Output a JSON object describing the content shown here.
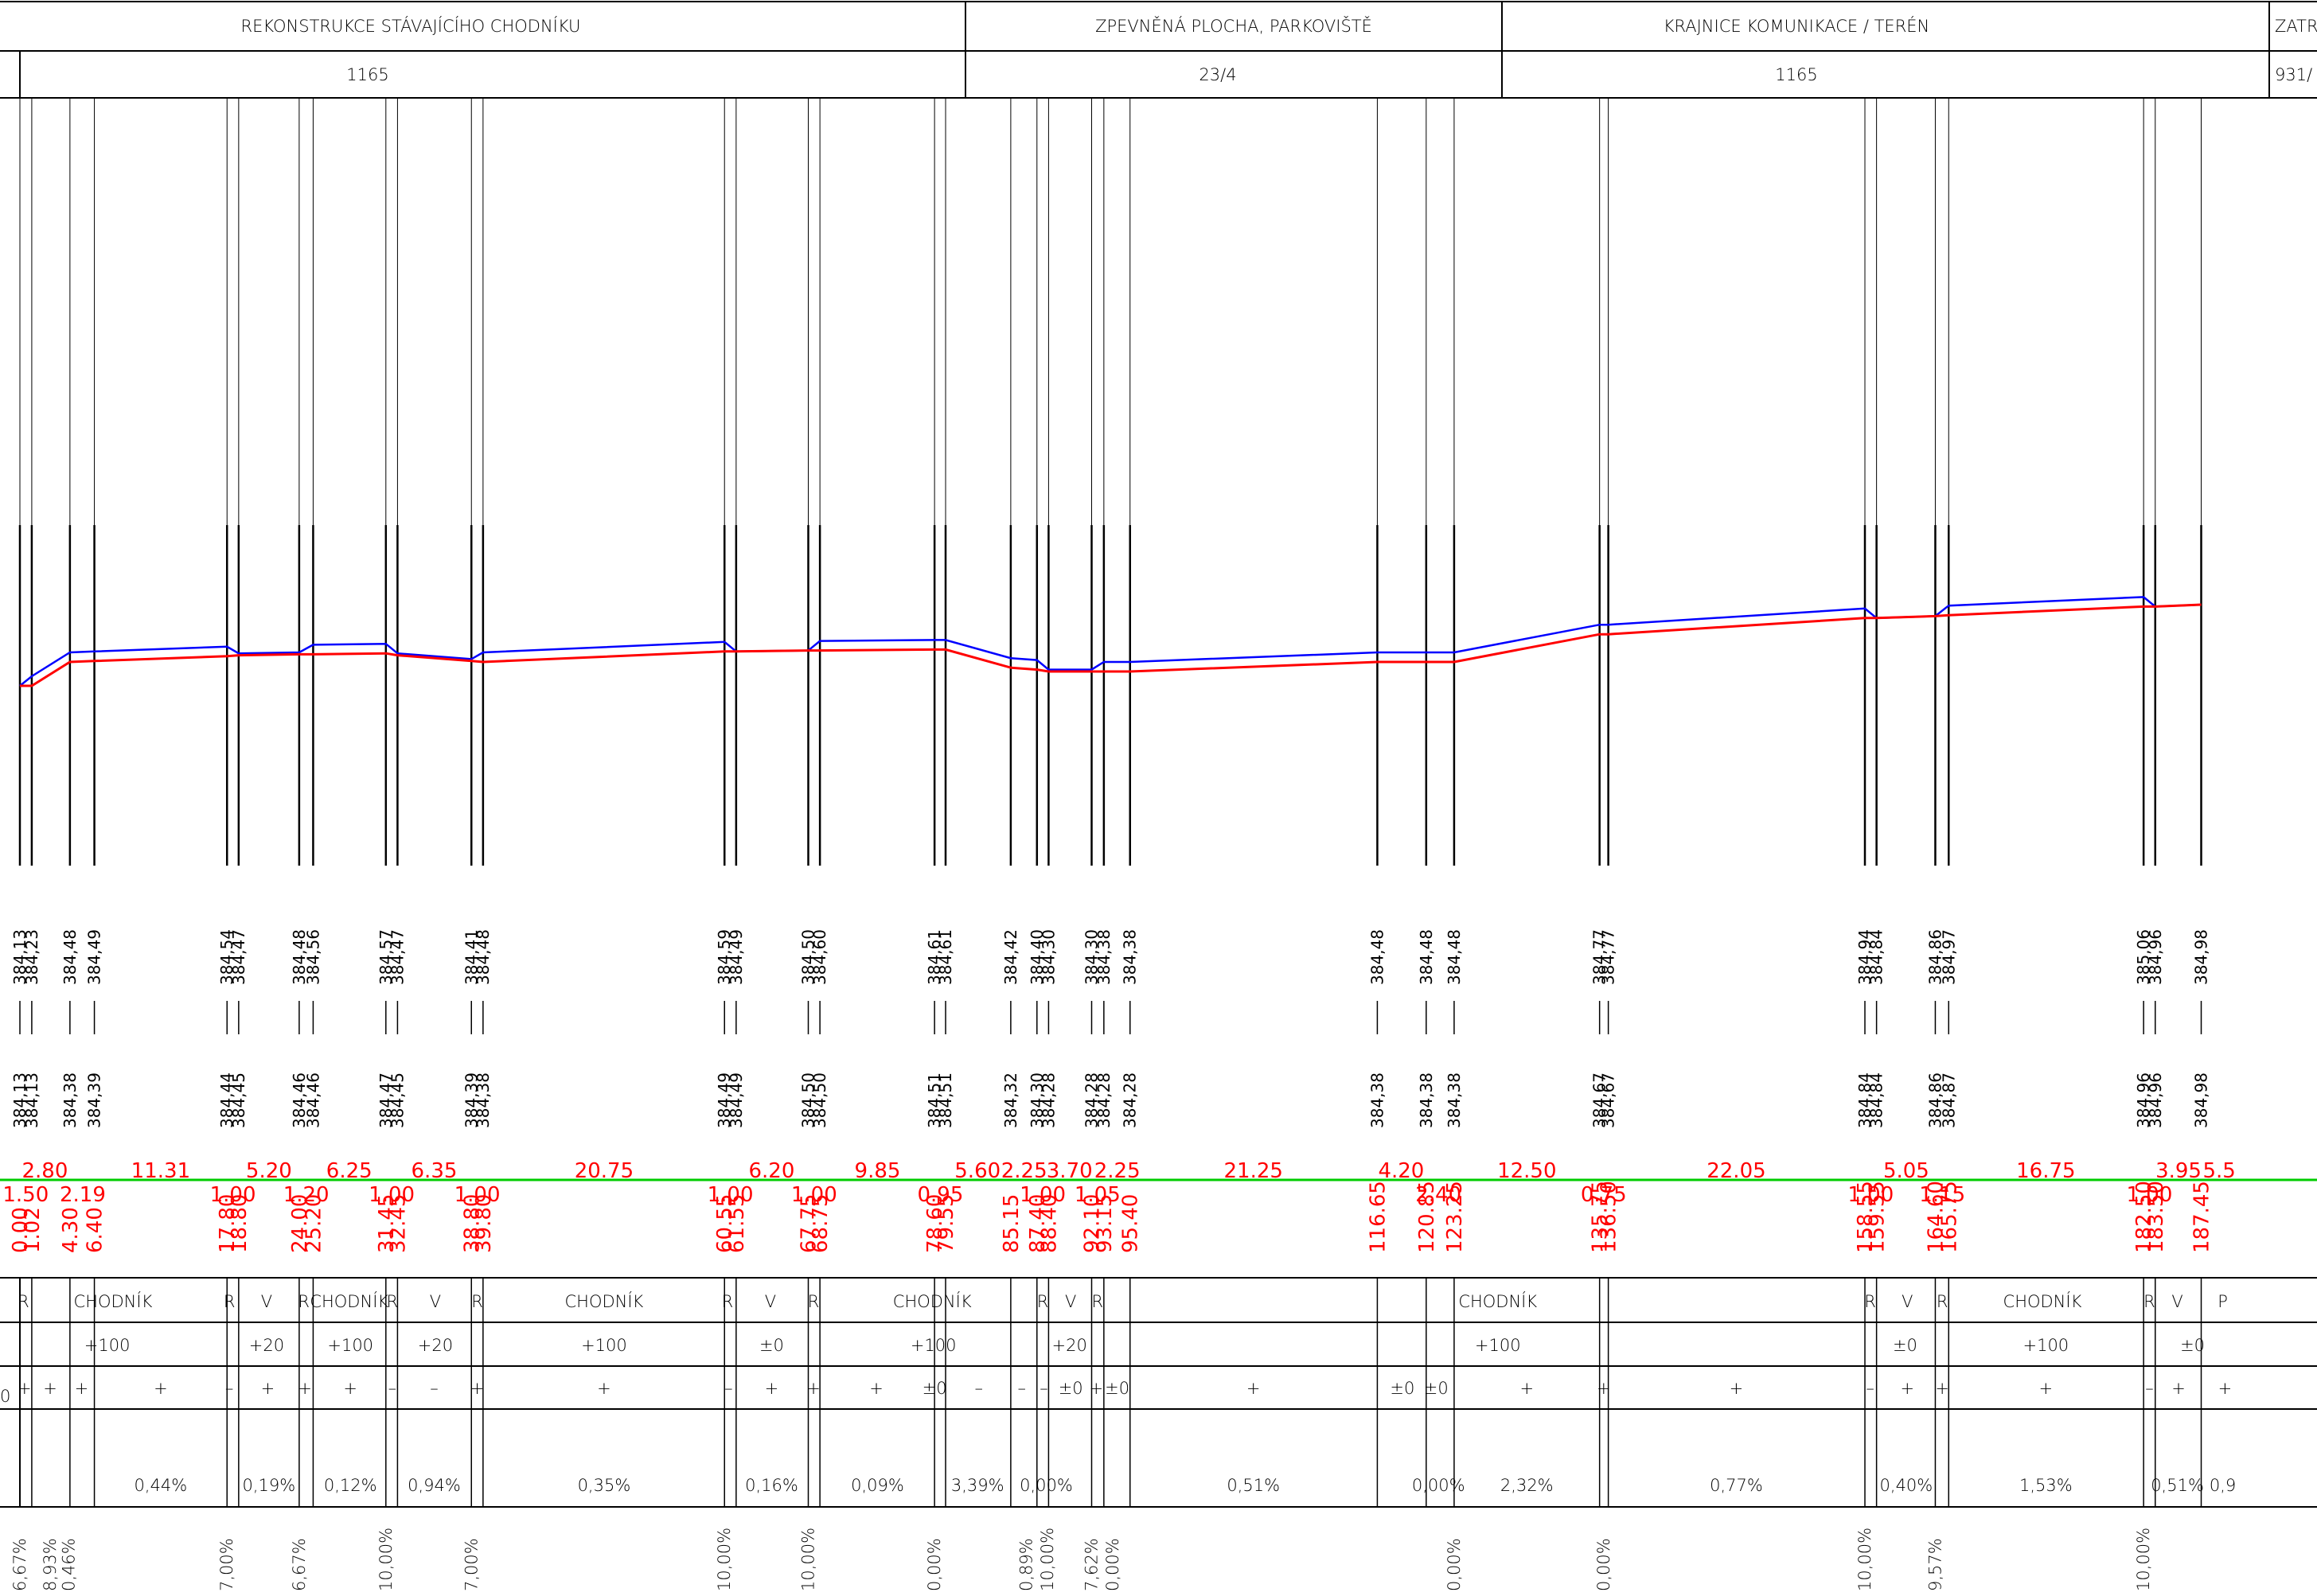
{
  "header": {
    "sections": [
      {
        "title": "REKONSTRUKCE STÁVAJÍCÍHO CHODNÍKU",
        "parcel": "1165"
      },
      {
        "title": "ZPEVNĚNÁ PLOCHA, PARKOVIŠTĚ",
        "parcel": "23/4"
      },
      {
        "title": "KRAJNICE KOMUNIKACE / TERÉN",
        "parcel": "1165"
      },
      {
        "title": "ZATR",
        "parcel": "931/"
      }
    ]
  },
  "colors": {
    "terrain": "#ff0000",
    "design": "#0000ff",
    "reference": "#00cc00",
    "lines": "#000000"
  },
  "stations": [
    {
      "x": 0.0,
      "existing": "384,13",
      "design": "384,13",
      "station": "0.00"
    },
    {
      "x": 1.02,
      "existing": "384,23",
      "design": "384,13",
      "station": "1.02"
    },
    {
      "x": 4.3,
      "existing": "384,48",
      "design": "384,38",
      "station": "4.30"
    },
    {
      "x": 6.4,
      "existing": "384,49",
      "design": "384,39",
      "station": "6.40"
    },
    {
      "x": 17.8,
      "existing": "384,54",
      "design": "384,44",
      "station": "17.80"
    },
    {
      "x": 18.8,
      "existing": "384,47",
      "design": "384,45",
      "station": "18.80"
    },
    {
      "x": 24.0,
      "existing": "384,48",
      "design": "384,46",
      "station": "24.00"
    },
    {
      "x": 25.2,
      "existing": "384,56",
      "design": "384,46",
      "station": "25.20"
    },
    {
      "x": 31.45,
      "existing": "384,57",
      "design": "384,47",
      "station": "31.45"
    },
    {
      "x": 32.45,
      "existing": "384,47",
      "design": "384,45",
      "station": "32.45"
    },
    {
      "x": 38.8,
      "existing": "384,41",
      "design": "384,39",
      "station": "38.80"
    },
    {
      "x": 39.8,
      "existing": "384,48",
      "design": "384,38",
      "station": "39.80"
    },
    {
      "x": 60.55,
      "existing": "384,59",
      "design": "384,49",
      "station": "60.55"
    },
    {
      "x": 61.55,
      "existing": "384,49",
      "design": "384,49",
      "station": "61.55"
    },
    {
      "x": 67.75,
      "existing": "384,50",
      "design": "384,50",
      "station": "67.75"
    },
    {
      "x": 68.75,
      "existing": "384,60",
      "design": "384,50",
      "station": "68.75"
    },
    {
      "x": 78.6,
      "existing": "384,61",
      "design": "384,51",
      "station": "78.60"
    },
    {
      "x": 79.55,
      "existing": "384,61",
      "design": "384,51",
      "station": "79.55"
    },
    {
      "x": 85.15,
      "existing": "384,42",
      "design": "384,32",
      "station": "85.15"
    },
    {
      "x": 87.4,
      "existing": "384,40",
      "design": "384,30",
      "station": "87.40"
    },
    {
      "x": 88.4,
      "existing": "384,30",
      "design": "384,28",
      "station": "88.40"
    },
    {
      "x": 92.1,
      "existing": "384,30",
      "design": "384,28",
      "station": "92.10"
    },
    {
      "x": 93.15,
      "existing": "384,38",
      "design": "384,28",
      "station": "93.15"
    },
    {
      "x": 95.4,
      "existing": "384,38",
      "design": "384,28",
      "station": "95.40"
    },
    {
      "x": 116.65,
      "existing": "384,48",
      "design": "384,38",
      "station": "116.65"
    },
    {
      "x": 120.85,
      "existing": "384,48",
      "design": "384,38",
      "station": "120.85"
    },
    {
      "x": 123.25,
      "existing": "384,48",
      "design": "384,38",
      "station": "123.25"
    },
    {
      "x": 135.75,
      "existing": "384,77",
      "design": "384,67",
      "station": "135.75"
    },
    {
      "x": 136.5,
      "existing": "384,77",
      "design": "384,67",
      "station": "136.50"
    },
    {
      "x": 158.55,
      "existing": "384,94",
      "design": "384,84",
      "station": "158.55"
    },
    {
      "x": 159.55,
      "existing": "384,84",
      "design": "384,84",
      "station": "159.55"
    },
    {
      "x": 164.6,
      "existing": "384,86",
      "design": "384,86",
      "station": "164.60"
    },
    {
      "x": 165.75,
      "existing": "384,97",
      "design": "384,87",
      "station": "165.75"
    },
    {
      "x": 182.5,
      "existing": "385,06",
      "design": "384,96",
      "station": "182.50"
    },
    {
      "x": 183.5,
      "existing": "384,96",
      "design": "384,96",
      "station": "183.50"
    },
    {
      "x": 187.45,
      "existing": "384,98",
      "design": "384,98",
      "station": "187.45"
    }
  ],
  "spacing_upper": [
    {
      "x": 2.15,
      "text": "2.80"
    },
    {
      "x": 12.1,
      "text": "11.31"
    },
    {
      "x": 21.4,
      "text": "5.20"
    },
    {
      "x": 28.3,
      "text": "6.25"
    },
    {
      "x": 35.6,
      "text": "6.35"
    },
    {
      "x": 50.2,
      "text": "20.75"
    },
    {
      "x": 64.6,
      "text": "6.20"
    },
    {
      "x": 73.7,
      "text": "9.85"
    },
    {
      "x": 82.3,
      "text": "5.60"
    },
    {
      "x": 86.3,
      "text": "2.25"
    },
    {
      "x": 90.2,
      "text": "3.70"
    },
    {
      "x": 94.3,
      "text": "2.25"
    },
    {
      "x": 106.0,
      "text": "21.25"
    },
    {
      "x": 118.7,
      "text": "4.20"
    },
    {
      "x": 129.5,
      "text": "12.50"
    },
    {
      "x": 147.5,
      "text": "22.05"
    },
    {
      "x": 162.1,
      "text": "5.05"
    },
    {
      "x": 174.1,
      "text": "16.75"
    },
    {
      "x": 185.5,
      "text": "3.95"
    },
    {
      "x": 189.0,
      "text": "5.5"
    }
  ],
  "spacing_lower": [
    {
      "x": 0.5,
      "text": "1.50"
    },
    {
      "x": 5.4,
      "text": "2.19"
    },
    {
      "x": 18.3,
      "text": "1.00"
    },
    {
      "x": 24.6,
      "text": "1.20"
    },
    {
      "x": 31.95,
      "text": "1.00"
    },
    {
      "x": 39.3,
      "text": "1.00"
    },
    {
      "x": 61.05,
      "text": "1.00"
    },
    {
      "x": 68.25,
      "text": "1.00"
    },
    {
      "x": 79.1,
      "text": "0.95"
    },
    {
      "x": 87.9,
      "text": "1.00"
    },
    {
      "x": 92.6,
      "text": "1.05"
    },
    {
      "x": 121.9,
      "text": "2.40"
    },
    {
      "x": 136.1,
      "text": "0.75"
    },
    {
      "x": 159.05,
      "text": "1.00"
    },
    {
      "x": 165.2,
      "text": "1.15"
    },
    {
      "x": 183.0,
      "text": "1.00"
    }
  ],
  "surface_rows": {
    "row1": [
      {
        "x": 0.3,
        "text": "R"
      },
      {
        "x": 8.0,
        "text": "CHODNÍK"
      },
      {
        "x": 18.0,
        "text": "R"
      },
      {
        "x": 21.2,
        "text": "V"
      },
      {
        "x": 24.4,
        "text": "R"
      },
      {
        "x": 28.3,
        "text": "CHODNÍK"
      },
      {
        "x": 32.0,
        "text": "R"
      },
      {
        "x": 35.7,
        "text": "V"
      },
      {
        "x": 39.3,
        "text": "R"
      },
      {
        "x": 50.2,
        "text": "CHODNÍK"
      },
      {
        "x": 60.8,
        "text": "R"
      },
      {
        "x": 64.5,
        "text": "V"
      },
      {
        "x": 68.2,
        "text": "R"
      },
      {
        "x": 78.4,
        "text": "CHODNÍK"
      },
      {
        "x": 87.9,
        "text": "R"
      },
      {
        "x": 90.3,
        "text": "V"
      },
      {
        "x": 92.6,
        "text": "R"
      },
      {
        "x": 127.0,
        "text": "CHODNÍK"
      },
      {
        "x": 159.0,
        "text": "R"
      },
      {
        "x": 162.2,
        "text": "V"
      },
      {
        "x": 165.2,
        "text": "R"
      },
      {
        "x": 173.8,
        "text": "CHODNÍK"
      },
      {
        "x": 183.0,
        "text": "R"
      },
      {
        "x": 185.4,
        "text": "V"
      },
      {
        "x": 189.3,
        "text": "P"
      }
    ],
    "row2": [
      {
        "x": 7.5,
        "text": "+100"
      },
      {
        "x": 21.2,
        "text": "+20"
      },
      {
        "x": 28.4,
        "text": "+100"
      },
      {
        "x": 35.7,
        "text": "+20"
      },
      {
        "x": 50.2,
        "text": "+100"
      },
      {
        "x": 64.6,
        "text": "±0"
      },
      {
        "x": 78.5,
        "text": "+100"
      },
      {
        "x": 90.2,
        "text": "+20"
      },
      {
        "x": 127.0,
        "text": "+100"
      },
      {
        "x": 162.0,
        "text": "±0"
      },
      {
        "x": 174.1,
        "text": "+100"
      },
      {
        "x": 186.7,
        "text": "±0"
      }
    ],
    "row3": [
      {
        "x": 0.4,
        "text": "+"
      },
      {
        "x": 2.6,
        "text": "+"
      },
      {
        "x": 5.3,
        "text": "+"
      },
      {
        "x": 12.1,
        "text": "+"
      },
      {
        "x": 18.0,
        "text": "–"
      },
      {
        "x": 21.3,
        "text": "+"
      },
      {
        "x": 24.5,
        "text": "+"
      },
      {
        "x": 28.4,
        "text": "+"
      },
      {
        "x": 32.0,
        "text": "–"
      },
      {
        "x": 35.6,
        "text": "–"
      },
      {
        "x": 39.3,
        "text": "+"
      },
      {
        "x": 50.2,
        "text": "+"
      },
      {
        "x": 60.9,
        "text": "–"
      },
      {
        "x": 64.6,
        "text": "+"
      },
      {
        "x": 68.2,
        "text": "+"
      },
      {
        "x": 73.6,
        "text": "+"
      },
      {
        "x": 78.6,
        "text": "±0"
      },
      {
        "x": 82.4,
        "text": "–"
      },
      {
        "x": 86.1,
        "text": "–"
      },
      {
        "x": 88.0,
        "text": "–"
      },
      {
        "x": 90.3,
        "text": "±0"
      },
      {
        "x": 92.5,
        "text": "+"
      },
      {
        "x": 94.3,
        "text": "±0"
      },
      {
        "x": 106.0,
        "text": "+"
      },
      {
        "x": 118.8,
        "text": "±0"
      },
      {
        "x": 121.7,
        "text": "±0"
      },
      {
        "x": 129.5,
        "text": "+"
      },
      {
        "x": 136.1,
        "text": "+"
      },
      {
        "x": 147.5,
        "text": "+"
      },
      {
        "x": 159.0,
        "text": "–"
      },
      {
        "x": 162.2,
        "text": "+"
      },
      {
        "x": 165.2,
        "text": "+"
      },
      {
        "x": 174.1,
        "text": "+"
      },
      {
        "x": 183.0,
        "text": "–"
      },
      {
        "x": 185.5,
        "text": "+"
      },
      {
        "x": 189.5,
        "text": "+"
      }
    ],
    "row4": [
      {
        "x": 12.1,
        "text": "0,44%"
      },
      {
        "x": 21.4,
        "text": "0,19%"
      },
      {
        "x": 28.4,
        "text": "0,12%"
      },
      {
        "x": 35.6,
        "text": "0,94%"
      },
      {
        "x": 50.2,
        "text": "0,35%"
      },
      {
        "x": 64.6,
        "text": "0,16%"
      },
      {
        "x": 73.7,
        "text": "0,09%"
      },
      {
        "x": 82.3,
        "text": "3,39%"
      },
      {
        "x": 88.2,
        "text": "0,00%"
      },
      {
        "x": 106.0,
        "text": "0,51%"
      },
      {
        "x": 121.9,
        "text": "0,00%"
      },
      {
        "x": 129.5,
        "text": "2,32%"
      },
      {
        "x": 147.5,
        "text": "0,77%"
      },
      {
        "x": 162.1,
        "text": "0,40%"
      },
      {
        "x": 174.1,
        "text": "1,53%"
      },
      {
        "x": 185.4,
        "text": "0,51%"
      },
      {
        "x": 189.3,
        "text": "0,9"
      }
    ]
  },
  "cross_slopes": [
    {
      "x": 0.0,
      "text": "6,67%"
    },
    {
      "x": 2.6,
      "text": "8,93%"
    },
    {
      "x": 4.2,
      "text": "0,46%"
    },
    {
      "x": 17.8,
      "text": "7,00%"
    },
    {
      "x": 24.0,
      "text": "6,67%"
    },
    {
      "x": 31.45,
      "text": "10,00%"
    },
    {
      "x": 38.8,
      "text": "7,00%"
    },
    {
      "x": 60.55,
      "text": "10,00%"
    },
    {
      "x": 67.75,
      "text": "10,00%"
    },
    {
      "x": 78.6,
      "text": "0,00%"
    },
    {
      "x": 86.5,
      "text": "0,89%"
    },
    {
      "x": 88.3,
      "text": "10,00%"
    },
    {
      "x": 92.1,
      "text": "7,62%"
    },
    {
      "x": 93.9,
      "text": "0,00%"
    },
    {
      "x": 123.25,
      "text": "0,00%"
    },
    {
      "x": 136.1,
      "text": "0,00%"
    },
    {
      "x": 158.55,
      "text": "10,00%"
    },
    {
      "x": 164.6,
      "text": "9,57%"
    },
    {
      "x": 182.5,
      "text": "10,00%"
    }
  ],
  "row_marker": "0"
}
